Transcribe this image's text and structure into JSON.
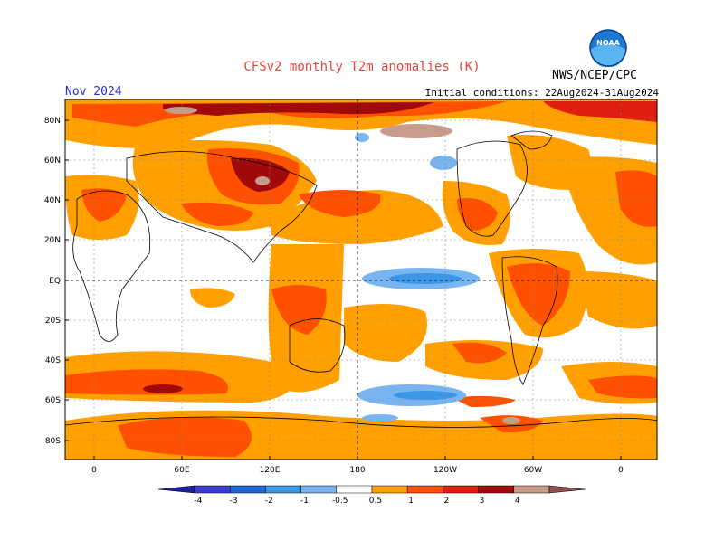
{
  "title": "CFSv2 monthly T2m anomalies (K)",
  "agency": "NWS/NCEP/CPC",
  "logo_text": "NOAA",
  "month": "Nov 2024",
  "initial_conditions": "Initial conditions: 22Aug2024-31Aug2024",
  "lat_labels": [
    "80N",
    "60N",
    "40N",
    "20N",
    "EQ",
    "20S",
    "40S",
    "60S",
    "80S"
  ],
  "lon_labels": [
    "0",
    "60E",
    "120E",
    "180",
    "120W",
    "60W",
    "0"
  ],
  "legend": {
    "labels": [
      "-4",
      "-3",
      "-2",
      "-1",
      "-0.5",
      "0.5",
      "1",
      "2",
      "3",
      "4"
    ],
    "colors": [
      "#1e1ea0",
      "#3a3ad0",
      "#1e66d0",
      "#3c96e8",
      "#78b4f0",
      "#ffffff",
      "#ffa000",
      "#ff5000",
      "#e01e10",
      "#a00a0a",
      "#c89b8c",
      "#8c5050"
    ]
  },
  "colors": {
    "orange": "#ffa000",
    "red_orange": "#ff5000",
    "red": "#e01e10",
    "dark_red": "#a00a0a",
    "pink": "#c89b8c",
    "light_blue": "#78b4f0",
    "blue": "#3c96e8",
    "title_red": "#e8443a",
    "month_blue": "#2a2ad0"
  }
}
